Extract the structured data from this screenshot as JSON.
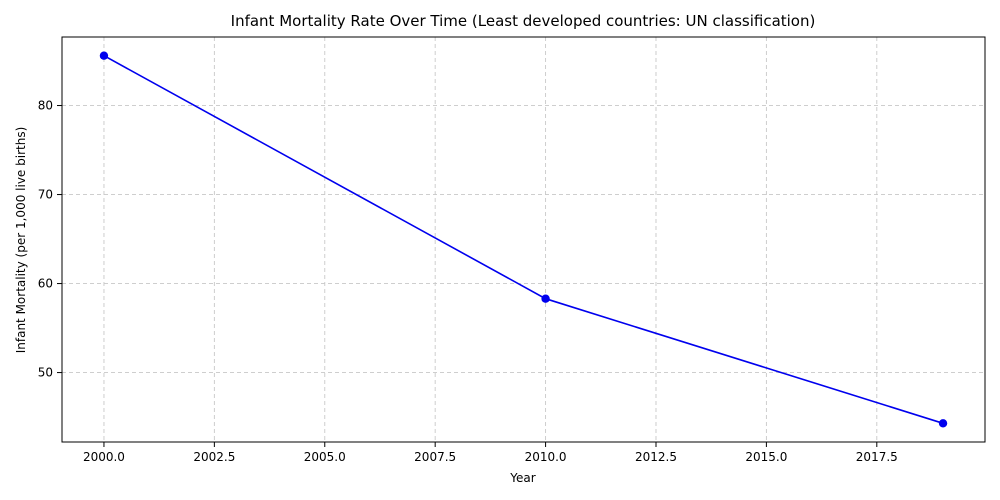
{
  "chart_data": {
    "type": "line",
    "title": "Infant Mortality Rate Over Time (Least developed countries: UN classification)",
    "xlabel": "Year",
    "ylabel": "Infant Mortality (per 1,000 live births)",
    "x": [
      2000,
      2010,
      2019
    ],
    "series": [
      {
        "values": [
          85.6,
          58.3,
          44.3
        ],
        "color": "#0000ee",
        "marker": "circle"
      }
    ],
    "xlim": [
      1999.05,
      2019.95
    ],
    "ylim": [
      42.2,
      87.7
    ],
    "xticks": [
      2000.0,
      2002.5,
      2005.0,
      2007.5,
      2010.0,
      2012.5,
      2015.0,
      2017.5
    ],
    "xtick_labels": [
      "2000.0",
      "2002.5",
      "2005.0",
      "2007.5",
      "2010.0",
      "2012.5",
      "2015.0",
      "2017.5"
    ],
    "yticks": [
      50,
      60,
      70,
      80
    ],
    "ytick_labels": [
      "50",
      "60",
      "70",
      "80"
    ],
    "grid": true,
    "legend": "none"
  }
}
